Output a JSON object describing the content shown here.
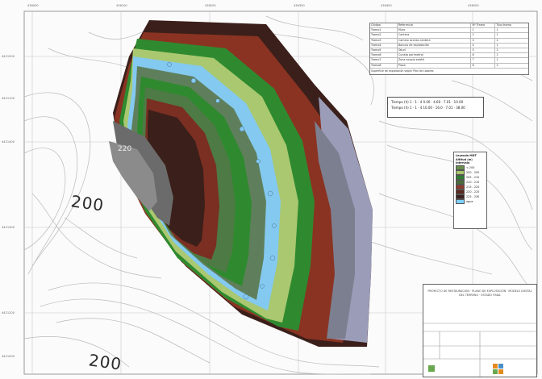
{
  "map": {
    "contour_labels": [
      "200",
      "200"
    ],
    "small_contour_label": "220"
  },
  "legend_table": {
    "headers": [
      "Código",
      "Referencia",
      "Nº Tramo",
      "Tipo tramo"
    ],
    "rows": [
      [
        "Tramo1",
        "Muro",
        "1",
        "1"
      ],
      [
        "Tramo2",
        "Cantera",
        "2",
        "1"
      ],
      [
        "Tramo3",
        "Camino acceso cantera",
        "3",
        "2"
      ],
      [
        "Tramo4",
        "Bancos de explotación",
        "4",
        "1"
      ],
      [
        "Tramo5",
        "Talud",
        "5",
        "2"
      ],
      [
        "Tramo6",
        "Cuneta perimetral",
        "6",
        "1"
      ],
      [
        "Tramo7",
        "Zona acopio estéril",
        "7",
        "1"
      ],
      [
        "Tramo8",
        "Plaza",
        "8",
        "2"
      ]
    ],
    "note": "Superficie de explotación según Plan de Labores"
  },
  "time_box": {
    "lines": [
      "Tiempo (h)  1  ·  1  ·  4    0.00 · 4.60 · 7.01 · 10.00",
      "Tiempo (h)  1  ·  1  ·  4    10.00 · 16.0 · 7.01 · 38.00"
    ]
  },
  "depth_legend": {
    "title": "Leyenda MDT",
    "subtitle": "Altitud (m)",
    "unit_label": "Intervalo",
    "entries": [
      {
        "color": "#6b8e4e",
        "label": "< 200"
      },
      {
        "color": "#a8c66c",
        "label": "200 - 205"
      },
      {
        "color": "#2e7d32",
        "label": "205 - 210"
      },
      {
        "color": "#4a6b3a",
        "label": "210 - 215"
      },
      {
        "color": "#8b3a2a",
        "label": "215 - 220"
      },
      {
        "color": "#5a2a1e",
        "label": "220 - 225"
      },
      {
        "color": "#3a2020",
        "label": "225 - 230"
      },
      {
        "color": "#7fd0ff",
        "label": "agua"
      }
    ]
  },
  "title_block": {
    "text": "PROYECTO DE RESTAURACIÓN · PLANO DE EXPLOTACIÓN · MODELO DIGITAL DEL TERRENO · ESTADO FINAL"
  },
  "coords": {
    "top": [
      "436000",
      "436100",
      "436200",
      "436300",
      "436400",
      "436500"
    ],
    "left": [
      "4421500",
      "4421400",
      "4421300",
      "4421200",
      "4421100",
      "4421000"
    ]
  },
  "colors": {
    "water": "#84c9ef",
    "grass": "#2f8a2f",
    "light_green": "#a9c870",
    "rust": "#8a3322",
    "dark_brown": "#3b1f1a",
    "grey_slope": "#8a8f9c",
    "lavender": "#9b9cb8"
  }
}
